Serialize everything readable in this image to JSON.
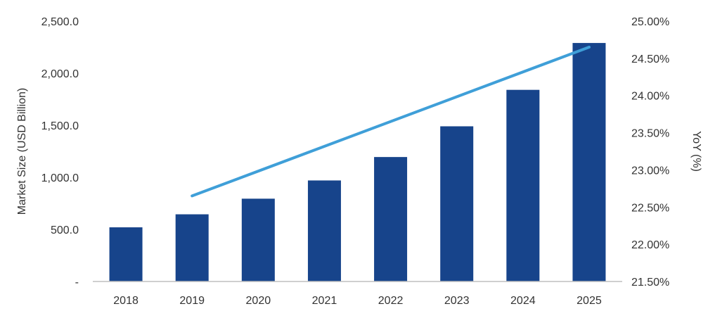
{
  "chart_data": {
    "type": "bar",
    "categories": [
      "2018",
      "2019",
      "2020",
      "2021",
      "2022",
      "2023",
      "2024",
      "2025"
    ],
    "series": [
      {
        "type": "bar",
        "axis": "left",
        "values": [
          520,
          645,
          795,
          970,
          1195,
          1490,
          1840,
          2290
        ]
      },
      {
        "type": "line",
        "axis": "right",
        "values": [
          null,
          22.65,
          null,
          null,
          null,
          null,
          null,
          24.65
        ]
      }
    ],
    "ylabel": "Market Size (USD Billion)",
    "y2label": "YoY (%)",
    "ylim": [
      0,
      2500
    ],
    "y2lim": [
      21.5,
      25.0
    ],
    "yticks": [
      "-",
      "500.0",
      "1,000.0",
      "1,500.0",
      "2,000.0",
      "2,500.0"
    ],
    "y2ticks": [
      "21.50%",
      "22.00%",
      "22.50%",
      "23.00%",
      "23.50%",
      "24.00%",
      "24.50%",
      "25.00%"
    ],
    "grid": false,
    "colors": {
      "bar": "#17448b",
      "line": "#3f9fd8",
      "axis": "#bfbfbf"
    }
  }
}
